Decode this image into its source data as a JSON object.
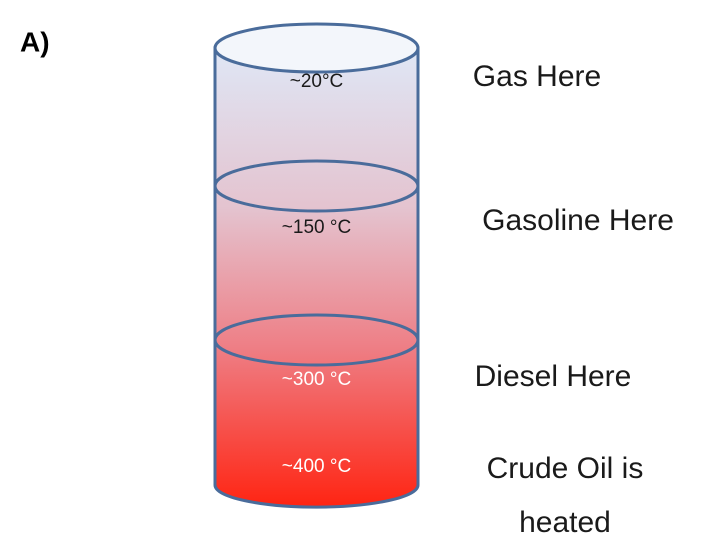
{
  "panel_label": "A)",
  "levels": [
    {
      "temperature": "~20°C",
      "label_lines": [
        "Gas Here"
      ]
    },
    {
      "temperature": "~150 °C",
      "label_lines": [
        "Gasoline Here"
      ]
    },
    {
      "temperature": "~300 °C",
      "label_lines": [
        "Diesel Here"
      ]
    },
    {
      "temperature": "~400 °C",
      "label_lines": [
        "Crude Oil is",
        "heated"
      ]
    }
  ]
}
